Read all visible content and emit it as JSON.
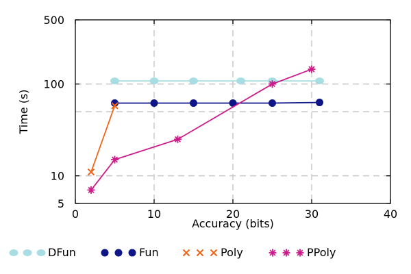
{
  "chart_data": {
    "type": "line",
    "title": "",
    "xlabel": "Accuracy (bits)",
    "ylabel": "Time (s)",
    "xlim": [
      0,
      40
    ],
    "ylim": [
      5,
      500
    ],
    "yscale": "log",
    "xticks": [
      0,
      10,
      20,
      30,
      40
    ],
    "yticks": [
      5,
      10,
      100,
      500
    ],
    "ygrid_minor": [
      50
    ],
    "grid": true,
    "grid_style": "dashed",
    "legend_position": "bottom",
    "series": [
      {
        "name": "DFun",
        "color": "#a8dde3",
        "marker": "ellipse",
        "x": [
          5,
          10,
          15,
          21,
          25,
          31
        ],
        "y": [
          108,
          108,
          108,
          108,
          108,
          108
        ]
      },
      {
        "name": "Fun",
        "color": "#0d1587",
        "marker": "circle",
        "x": [
          5,
          10,
          15,
          20,
          25,
          31
        ],
        "y": [
          62,
          62,
          62,
          62,
          62,
          63
        ]
      },
      {
        "name": "Poly",
        "color": "#f06418",
        "marker": "x",
        "x": [
          2,
          5
        ],
        "y": [
          11,
          58
        ]
      },
      {
        "name": "PPoly",
        "color": "#cc1a8a",
        "marker": "asterisk",
        "x": [
          2,
          5,
          13,
          25,
          30
        ],
        "y": [
          7,
          15,
          25,
          100,
          145
        ]
      }
    ]
  }
}
